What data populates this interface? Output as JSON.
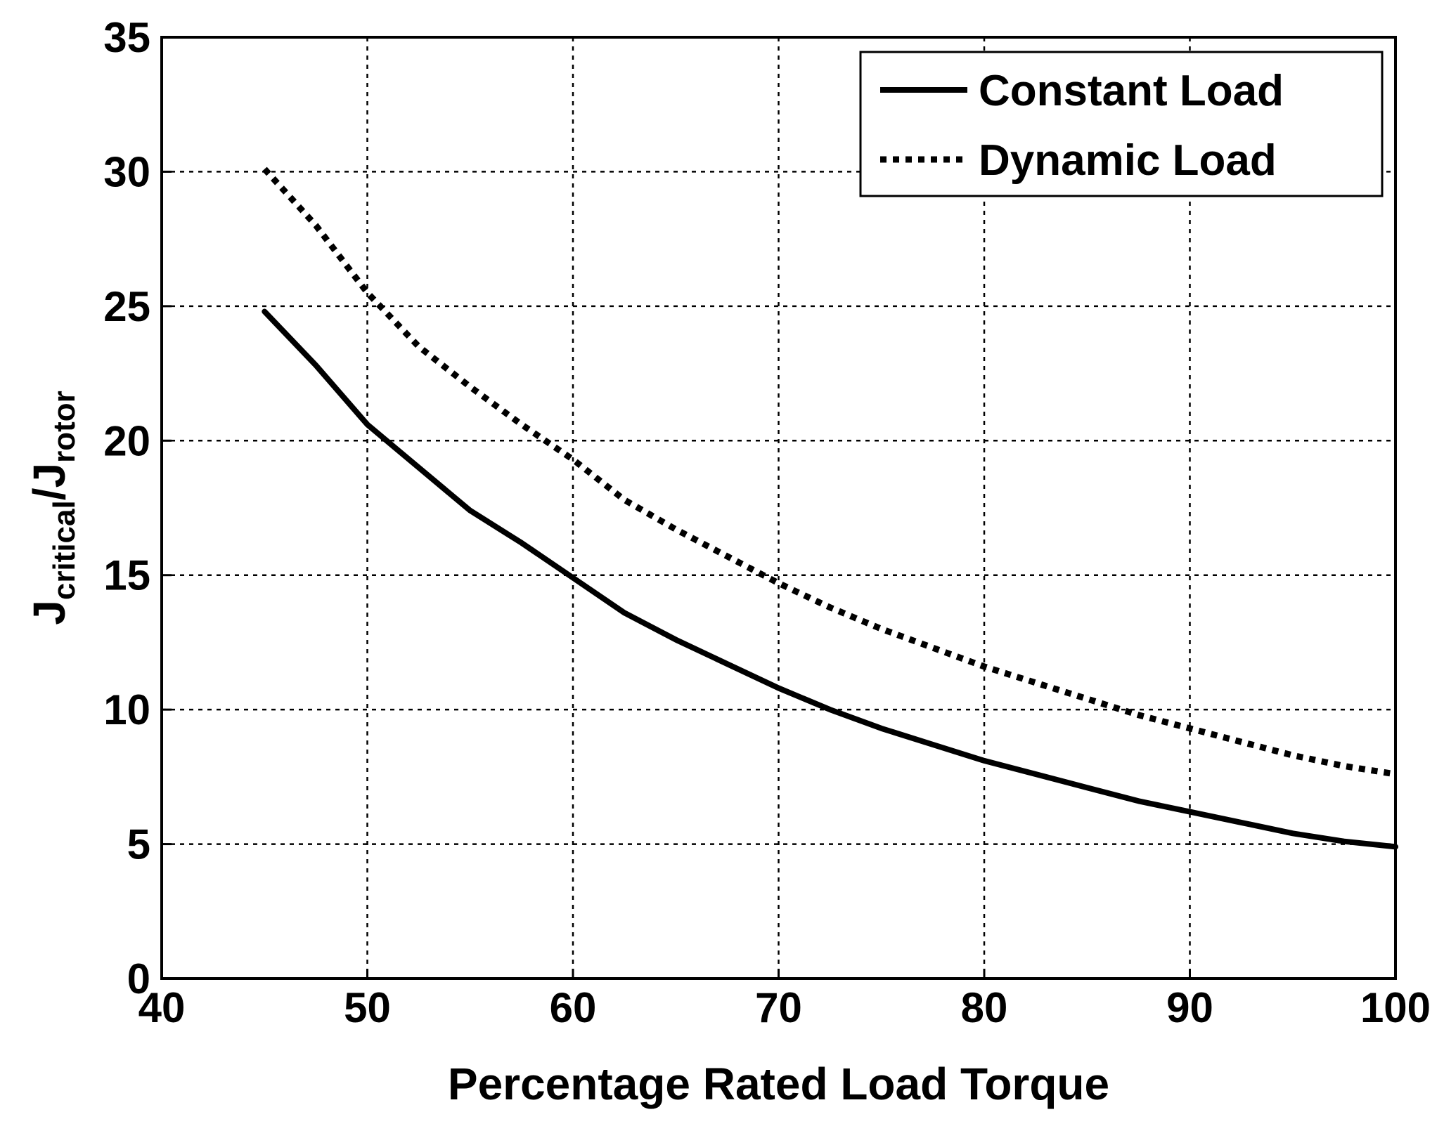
{
  "chart_data": {
    "type": "line",
    "title": "",
    "xlabel": "Percentage Rated Load Torque",
    "ylabel_main": "J",
    "ylabel_sub1": "critical",
    "ylabel_sep": "/J",
    "ylabel_sub2": "rotor",
    "xlim": [
      40,
      100
    ],
    "ylim": [
      0,
      35
    ],
    "xticks": [
      40,
      50,
      60,
      70,
      80,
      90,
      100
    ],
    "yticks": [
      0,
      5,
      10,
      15,
      20,
      25,
      30,
      35
    ],
    "grid": true,
    "legend_position": "top-right",
    "series": [
      {
        "name": "Constant Load",
        "style": "solid",
        "color": "#000000",
        "x": [
          45,
          47.5,
          50,
          52.5,
          55,
          57.5,
          60,
          62.5,
          65,
          67.5,
          70,
          72.5,
          75,
          77.5,
          80,
          82.5,
          85,
          87.5,
          90,
          92.5,
          95,
          97.5,
          100
        ],
        "y": [
          24.8,
          22.8,
          20.6,
          19.0,
          17.4,
          16.2,
          14.9,
          13.6,
          12.6,
          11.7,
          10.8,
          10.0,
          9.3,
          8.7,
          8.1,
          7.6,
          7.1,
          6.6,
          6.2,
          5.8,
          5.4,
          5.1,
          4.9
        ]
      },
      {
        "name": "Dynamic Load",
        "style": "dotted",
        "color": "#000000",
        "x": [
          45,
          47.5,
          50,
          52.5,
          55,
          57.5,
          60,
          62.5,
          65,
          67.5,
          70,
          72.5,
          75,
          77.5,
          80,
          82.5,
          85,
          87.5,
          90,
          92.5,
          95,
          97.5,
          100
        ],
        "y": [
          30.1,
          28.0,
          25.5,
          23.5,
          22.0,
          20.6,
          19.3,
          17.8,
          16.7,
          15.7,
          14.7,
          13.8,
          13.0,
          12.3,
          11.6,
          11.0,
          10.4,
          9.8,
          9.3,
          8.8,
          8.3,
          7.9,
          7.6
        ]
      }
    ]
  }
}
